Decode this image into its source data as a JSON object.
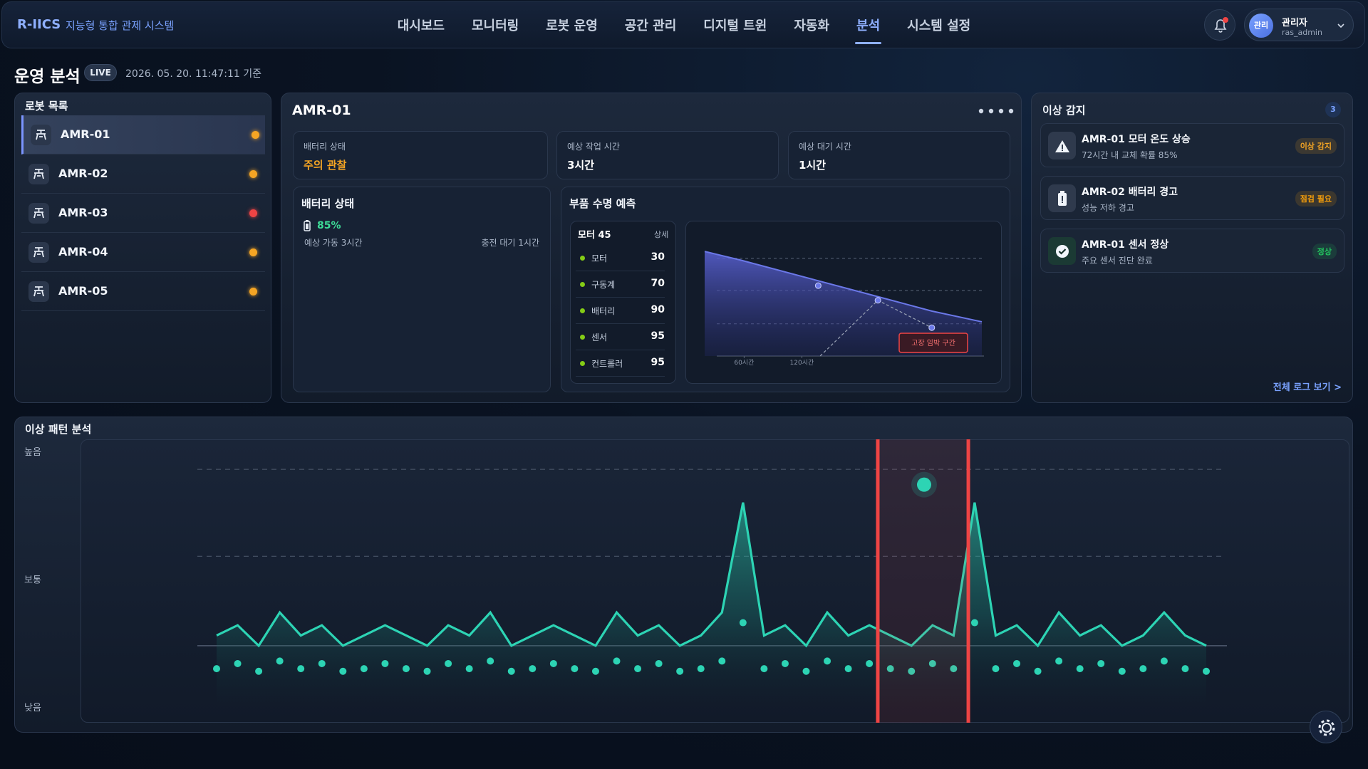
{
  "header": {
    "logo": "R-IICS",
    "subtitle": "지능형 통합 관제 시스템",
    "nav": [
      "대시보드",
      "모니터링",
      "로봇 운영",
      "공간 관리",
      "디지털 트윈",
      "자동화",
      "분석",
      "시스템 설정"
    ],
    "active_nav": 6,
    "user": {
      "avatar": "관리",
      "name": "관리자",
      "id": "ras_admin"
    }
  },
  "page": {
    "title": "운영 분석",
    "badge": "LIVE",
    "timestamp": "2026. 05. 20. 11:47:11 기준"
  },
  "robots": {
    "title": "로봇 목록",
    "selected": 0,
    "items": [
      {
        "name": "AMR-01",
        "status_color": "#f5a524"
      },
      {
        "name": "AMR-02",
        "status_color": "#f5a524"
      },
      {
        "name": "AMR-03",
        "status_color": "#ef4444"
      },
      {
        "name": "AMR-04",
        "status_color": "#f5a524"
      },
      {
        "name": "AMR-05",
        "status_color": "#f5a524"
      }
    ]
  },
  "detail": {
    "title": "AMR-01",
    "stats": [
      {
        "label": "배터리 상태",
        "value": "주의 관찰",
        "color": "#f5a524"
      },
      {
        "label": "예상 작업 시간",
        "value": "3시간",
        "color": "#ffffff"
      },
      {
        "label": "예상 대기 시간",
        "value": "1시간",
        "color": "#ffffff"
      }
    ],
    "battery": {
      "title": "배터리 상태",
      "level": "85%",
      "runtime": "예상 가동 3시간",
      "charge": "충전 대기 1시간"
    },
    "parts": {
      "title": "부품 수명 예측",
      "list_title": "모터 45",
      "detail": "상세",
      "dot_color": "#84cc16",
      "items": [
        {
          "name": "모터",
          "value": 30
        },
        {
          "name": "구동계",
          "value": 70
        },
        {
          "name": "배터리",
          "value": 90
        },
        {
          "name": "센서",
          "value": 95
        },
        {
          "name": "컨트롤러",
          "value": 95
        }
      ]
    },
    "life_chart": {
      "type": "line",
      "xlim": [
        19,
        307
      ],
      "ylim": [
        0,
        110
      ],
      "xticks": [
        {
          "value": 60,
          "label": "60시간"
        },
        {
          "value": 120,
          "label": "120시간"
        }
      ],
      "gridlines": [
        33,
        67,
        100
      ],
      "curve": {
        "color": "#6b78e8",
        "x": [
          19,
          57,
          137,
          198,
          255,
          307
        ],
        "values": [
          107,
          98,
          77,
          61,
          46,
          35
        ]
      },
      "points": {
        "color": "#6b78e8",
        "x": [
          137,
          199,
          255
        ],
        "values": [
          72,
          57,
          29
        ]
      },
      "trend": {
        "x": [
          139,
          199,
          255
        ],
        "values": [
          0,
          57,
          29
        ]
      },
      "annotation": "고장 임박 구간"
    }
  },
  "alerts": {
    "title": "이상 감지",
    "count": 3,
    "more": "전체 로그 보기 >",
    "items": [
      {
        "title": "AMR-01 모터 온도 상승",
        "desc": "72시간 내 교체 확률 85%",
        "badge": "이상 감지",
        "icon": "warning",
        "color": "#f5a524"
      },
      {
        "title": "AMR-02 배터리 경고",
        "desc": "성능 저하 경고",
        "badge": "점검 필요",
        "icon": "battery",
        "color": "#f59e0b"
      },
      {
        "title": "AMR-01 센서 정상",
        "desc": "주요 센서 진단 완료",
        "badge": "정상",
        "icon": "check",
        "color": "#22c55e"
      }
    ]
  },
  "pattern": {
    "type": "line",
    "title": "이상 패턴 분석",
    "ylim": [
      0,
      100
    ],
    "yticks": [
      {
        "value": 100,
        "label": "높음"
      },
      {
        "value": 50,
        "label": "보통"
      },
      {
        "value": 0,
        "label": "낮음"
      }
    ],
    "gridlines": [
      93,
      59
    ],
    "baseline": 24,
    "line": {
      "color": "#2dd4b4",
      "values": [
        28,
        32,
        24,
        37,
        28,
        32,
        24,
        28,
        32,
        28,
        24,
        32,
        28,
        37,
        24,
        28,
        32,
        28,
        24,
        37,
        28,
        32,
        24,
        28,
        37,
        80,
        28,
        32,
        24,
        37,
        28,
        32,
        28,
        24,
        32,
        28,
        80,
        28,
        32,
        24,
        37,
        28,
        32,
        24,
        28,
        37,
        28,
        24
      ]
    },
    "dots": {
      "color": "#2dd4b4",
      "values": [
        15,
        17,
        14,
        18,
        15,
        17,
        14,
        15,
        17,
        15,
        14,
        17,
        15,
        18,
        14,
        15,
        17,
        15,
        14,
        18,
        15,
        17,
        14,
        15,
        18,
        33,
        15,
        17,
        14,
        18,
        15,
        17,
        15,
        14,
        17,
        15,
        33,
        15,
        17,
        14,
        18,
        15,
        17,
        14,
        15,
        18,
        15,
        14
      ]
    },
    "highlight": {
      "color": "#ef4444",
      "range": [
        31.4,
        35.7
      ]
    },
    "marker": {
      "x": 33.6,
      "value": 87
    }
  }
}
